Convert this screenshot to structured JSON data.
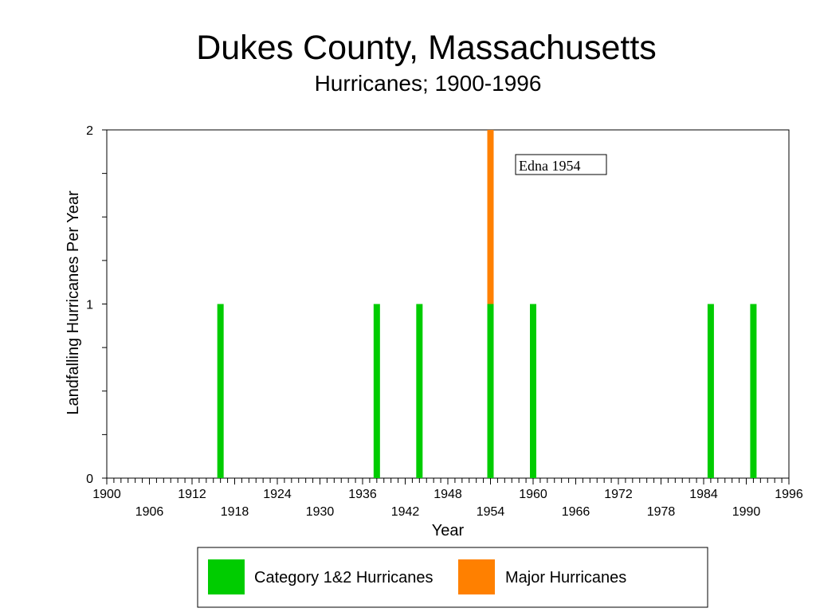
{
  "chart_data": {
    "type": "bar",
    "stacked": true,
    "title": "Dukes County, Massachusetts",
    "subtitle": "Hurricanes;  1900-1996",
    "xlabel": "Year",
    "ylabel": "Landfalling Hurricanes Per Year",
    "xlim": [
      1900,
      1996
    ],
    "ylim": [
      0,
      2
    ],
    "yticks": [
      "0",
      "1",
      "2"
    ],
    "xticks_upper": [
      "1900",
      "1912",
      "1924",
      "1936",
      "1948",
      "1960",
      "1972",
      "1984",
      "1996"
    ],
    "xticks_lower": [
      "1906",
      "1918",
      "1930",
      "1942",
      "1954",
      "1966",
      "1978",
      "1990"
    ],
    "grid": false,
    "legend": "bottom",
    "series": [
      {
        "name": "Category 1&2 Hurricanes",
        "color": "#00cc00",
        "points": [
          {
            "year": 1916,
            "value": 1
          },
          {
            "year": 1938,
            "value": 1
          },
          {
            "year": 1944,
            "value": 1
          },
          {
            "year": 1954,
            "value": 1
          },
          {
            "year": 1960,
            "value": 1
          },
          {
            "year": 1985,
            "value": 1
          },
          {
            "year": 1991,
            "value": 1
          }
        ]
      },
      {
        "name": "Major Hurricanes",
        "color": "#ff8000",
        "points": [
          {
            "year": 1954,
            "value": 1
          }
        ]
      }
    ],
    "annotations": [
      {
        "text": "Edna 1954"
      }
    ]
  }
}
